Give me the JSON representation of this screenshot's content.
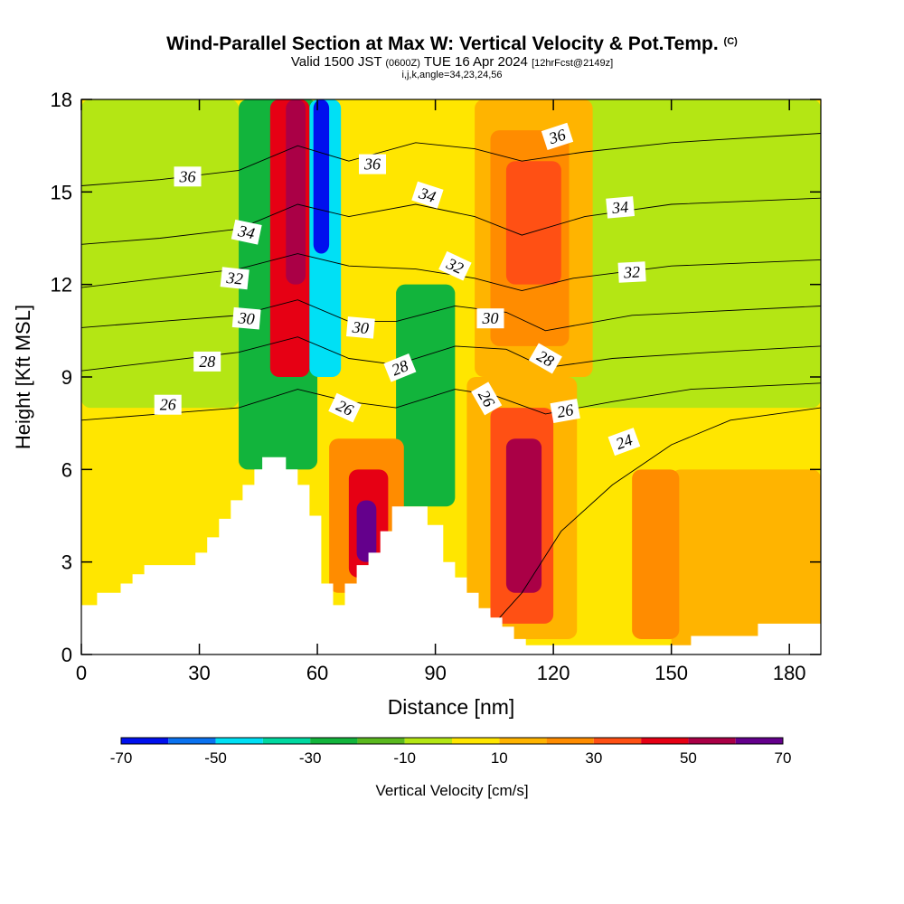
{
  "header": {
    "title": "Wind-Parallel Section at Max W: Vertical Velocity & Pot.Temp.",
    "copyright": "(C)",
    "valid_main": "Valid 1500 JST",
    "valid_utc": "(0600Z)",
    "valid_date": "TUE 16 Apr 2024",
    "forecast": "[12hrFcst@2149z]",
    "indices": "i,j,k,angle=34,23,24,56"
  },
  "chart_data": {
    "type": "heatmap",
    "xlabel": "Distance [nm]",
    "ylabel": "Height [Kft MSL]",
    "xlim": [
      0,
      188
    ],
    "ylim": [
      0,
      18
    ],
    "xticks": [
      0,
      30,
      60,
      90,
      120,
      150,
      180
    ],
    "yticks": [
      0,
      3,
      6,
      9,
      12,
      15,
      18
    ],
    "colorbar": {
      "label": "Vertical Velocity [cm/s]",
      "ticks": [
        -70,
        -50,
        -30,
        -10,
        10,
        30,
        50,
        70
      ],
      "levels": [
        -70,
        -60,
        -50,
        -40,
        -30,
        -20,
        -10,
        0,
        10,
        20,
        30,
        40,
        50,
        60,
        70
      ],
      "colors": [
        "#0010ee",
        "#0a72f0",
        "#00e0f5",
        "#00d8a0",
        "#12b43c",
        "#5ab81e",
        "#b4e614",
        "#ffe600",
        "#ffb400",
        "#ff8c00",
        "#ff5014",
        "#e60014",
        "#aa0046",
        "#64008c"
      ]
    },
    "terrain_kft": [
      [
        0,
        1.6
      ],
      [
        4,
        1.6
      ],
      [
        4,
        2.0
      ],
      [
        10,
        2.0
      ],
      [
        10,
        2.3
      ],
      [
        13,
        2.3
      ],
      [
        13,
        2.6
      ],
      [
        16,
        2.6
      ],
      [
        16,
        2.9
      ],
      [
        29,
        2.9
      ],
      [
        29,
        3.3
      ],
      [
        32,
        3.3
      ],
      [
        32,
        3.8
      ],
      [
        35,
        3.8
      ],
      [
        35,
        4.4
      ],
      [
        38,
        4.4
      ],
      [
        38,
        5.0
      ],
      [
        41,
        5.0
      ],
      [
        41,
        5.5
      ],
      [
        44,
        5.5
      ],
      [
        44,
        6.0
      ],
      [
        46,
        6.0
      ],
      [
        46,
        6.4
      ],
      [
        52,
        6.4
      ],
      [
        52,
        6.0
      ],
      [
        55,
        6.0
      ],
      [
        55,
        5.5
      ],
      [
        58,
        5.5
      ],
      [
        58,
        4.5
      ],
      [
        61,
        4.5
      ],
      [
        61,
        2.3
      ],
      [
        64,
        2.3
      ],
      [
        64,
        1.6
      ],
      [
        67,
        1.6
      ],
      [
        67,
        2.3
      ],
      [
        70,
        2.3
      ],
      [
        70,
        2.9
      ],
      [
        73,
        2.9
      ],
      [
        73,
        3.3
      ],
      [
        76,
        3.3
      ],
      [
        76,
        4.0
      ],
      [
        79,
        4.0
      ],
      [
        79,
        4.8
      ],
      [
        88,
        4.8
      ],
      [
        88,
        4.2
      ],
      [
        92,
        4.2
      ],
      [
        92,
        3.0
      ],
      [
        95,
        3.0
      ],
      [
        95,
        2.5
      ],
      [
        98,
        2.5
      ],
      [
        98,
        2.0
      ],
      [
        101,
        2.0
      ],
      [
        101,
        1.5
      ],
      [
        104,
        1.5
      ],
      [
        104,
        1.2
      ],
      [
        107,
        1.2
      ],
      [
        107,
        0.9
      ],
      [
        110,
        0.9
      ],
      [
        110,
        0.5
      ],
      [
        113,
        0.5
      ],
      [
        113,
        0.3
      ],
      [
        130,
        0.3
      ],
      [
        130,
        0.3
      ],
      [
        155,
        0.3
      ],
      [
        155,
        0.6
      ],
      [
        172,
        0.6
      ],
      [
        172,
        1.0
      ],
      [
        188,
        1.0
      ]
    ],
    "w_cells": [
      {
        "x": [
          0,
          188
        ],
        "y": [
          0,
          18
        ],
        "w": 5
      },
      {
        "x": [
          0,
          40
        ],
        "y": [
          8,
          18
        ],
        "w": -5
      },
      {
        "x": [
          115,
          188
        ],
        "y": [
          8,
          18
        ],
        "w": -5
      },
      {
        "x": [
          150,
          188
        ],
        "y": [
          0,
          6
        ],
        "w": 15
      },
      {
        "x": [
          100,
          130
        ],
        "y": [
          9,
          18
        ],
        "w": 15
      },
      {
        "x": [
          104,
          124
        ],
        "y": [
          10,
          17
        ],
        "w": 25
      },
      {
        "x": [
          108,
          122
        ],
        "y": [
          12,
          16
        ],
        "w": 35
      },
      {
        "x": [
          40,
          60
        ],
        "y": [
          6,
          18
        ],
        "w": -25
      },
      {
        "x": [
          48,
          58
        ],
        "y": [
          9,
          18
        ],
        "w": 45
      },
      {
        "x": [
          52,
          57
        ],
        "y": [
          12,
          18
        ],
        "w": 55
      },
      {
        "x": [
          58,
          66
        ],
        "y": [
          9,
          18
        ],
        "w": -45
      },
      {
        "x": [
          59,
          63
        ],
        "y": [
          13,
          18
        ],
        "w": -65
      },
      {
        "x": [
          80,
          95
        ],
        "y": [
          4.8,
          12
        ],
        "w": -25
      },
      {
        "x": [
          63,
          82
        ],
        "y": [
          2,
          7
        ],
        "w": 25
      },
      {
        "x": [
          68,
          78
        ],
        "y": [
          2.5,
          6
        ],
        "w": 45
      },
      {
        "x": [
          70,
          75
        ],
        "y": [
          3,
          5
        ],
        "w": 65
      },
      {
        "x": [
          98,
          126
        ],
        "y": [
          0.5,
          9
        ],
        "w": 15
      },
      {
        "x": [
          104,
          120
        ],
        "y": [
          1,
          8
        ],
        "w": 35
      },
      {
        "x": [
          108,
          117
        ],
        "y": [
          2,
          7
        ],
        "w": 55
      },
      {
        "x": [
          140,
          152
        ],
        "y": [
          0.5,
          6
        ],
        "w": 25
      }
    ],
    "theta_contours": [
      {
        "label": "24",
        "points": [
          [
            100,
            0.3
          ],
          [
            112,
            2.0
          ],
          [
            122,
            4.0
          ],
          [
            135,
            5.5
          ],
          [
            150,
            6.8
          ],
          [
            165,
            7.6
          ],
          [
            188,
            8.0
          ]
        ]
      },
      {
        "label": "26",
        "points": [
          [
            0,
            7.6
          ],
          [
            20,
            7.8
          ],
          [
            40,
            8.0
          ],
          [
            55,
            8.6
          ],
          [
            68,
            8.2
          ],
          [
            80,
            8.0
          ],
          [
            95,
            8.6
          ],
          [
            105,
            8.4
          ],
          [
            118,
            7.8
          ],
          [
            135,
            8.2
          ],
          [
            155,
            8.6
          ],
          [
            188,
            8.8
          ]
        ]
      },
      {
        "label": "28",
        "points": [
          [
            0,
            9.2
          ],
          [
            20,
            9.5
          ],
          [
            40,
            9.8
          ],
          [
            55,
            10.3
          ],
          [
            68,
            9.6
          ],
          [
            80,
            9.4
          ],
          [
            95,
            10.0
          ],
          [
            108,
            9.9
          ],
          [
            118,
            9.3
          ],
          [
            135,
            9.6
          ],
          [
            160,
            9.8
          ],
          [
            188,
            10.0
          ]
        ]
      },
      {
        "label": "30",
        "points": [
          [
            0,
            10.6
          ],
          [
            20,
            10.8
          ],
          [
            40,
            11.0
          ],
          [
            55,
            11.5
          ],
          [
            68,
            10.8
          ],
          [
            80,
            10.8
          ],
          [
            95,
            11.3
          ],
          [
            108,
            11.1
          ],
          [
            118,
            10.5
          ],
          [
            140,
            11.0
          ],
          [
            188,
            11.3
          ]
        ]
      },
      {
        "label": "32",
        "points": [
          [
            0,
            11.9
          ],
          [
            20,
            12.2
          ],
          [
            40,
            12.5
          ],
          [
            55,
            13.0
          ],
          [
            68,
            12.6
          ],
          [
            85,
            12.5
          ],
          [
            100,
            12.2
          ],
          [
            112,
            11.8
          ],
          [
            125,
            12.2
          ],
          [
            150,
            12.6
          ],
          [
            188,
            12.8
          ]
        ]
      },
      {
        "label": "34",
        "points": [
          [
            0,
            13.3
          ],
          [
            20,
            13.5
          ],
          [
            40,
            13.8
          ],
          [
            55,
            14.6
          ],
          [
            68,
            14.2
          ],
          [
            85,
            14.6
          ],
          [
            100,
            14.2
          ],
          [
            112,
            13.6
          ],
          [
            128,
            14.2
          ],
          [
            150,
            14.6
          ],
          [
            188,
            14.8
          ]
        ]
      },
      {
        "label": "36",
        "points": [
          [
            0,
            15.2
          ],
          [
            20,
            15.4
          ],
          [
            40,
            15.7
          ],
          [
            55,
            16.5
          ],
          [
            68,
            16.0
          ],
          [
            85,
            16.6
          ],
          [
            100,
            16.4
          ],
          [
            112,
            16.0
          ],
          [
            128,
            16.3
          ],
          [
            150,
            16.6
          ],
          [
            188,
            16.9
          ]
        ]
      }
    ],
    "theta_labels": [
      {
        "text": "36",
        "x": 27,
        "y": 15.5,
        "angle": 0
      },
      {
        "text": "36",
        "x": 74,
        "y": 15.9,
        "angle": 0
      },
      {
        "text": "36",
        "x": 121,
        "y": 16.8,
        "angle": -18
      },
      {
        "text": "34",
        "x": 42,
        "y": 13.7,
        "angle": 12
      },
      {
        "text": "34",
        "x": 88,
        "y": 14.9,
        "angle": 18
      },
      {
        "text": "34",
        "x": 137,
        "y": 14.5,
        "angle": -5
      },
      {
        "text": "32",
        "x": 39,
        "y": 12.2,
        "angle": 6
      },
      {
        "text": "32",
        "x": 95,
        "y": 12.6,
        "angle": 25
      },
      {
        "text": "32",
        "x": 140,
        "y": 12.4,
        "angle": -3
      },
      {
        "text": "30",
        "x": 42,
        "y": 10.9,
        "angle": 5
      },
      {
        "text": "30",
        "x": 71,
        "y": 10.6,
        "angle": 5
      },
      {
        "text": "30",
        "x": 104,
        "y": 10.9,
        "angle": 0
      },
      {
        "text": "28",
        "x": 32,
        "y": 9.5,
        "angle": 0
      },
      {
        "text": "28",
        "x": 81,
        "y": 9.3,
        "angle": -22
      },
      {
        "text": "28",
        "x": 118,
        "y": 9.6,
        "angle": 30
      },
      {
        "text": "26",
        "x": 22,
        "y": 8.1,
        "angle": 0
      },
      {
        "text": "26",
        "x": 67,
        "y": 8.0,
        "angle": 25
      },
      {
        "text": "26",
        "x": 103,
        "y": 8.3,
        "angle": 60
      },
      {
        "text": "26",
        "x": 123,
        "y": 7.9,
        "angle": -10
      },
      {
        "text": "24",
        "x": 138,
        "y": 6.9,
        "angle": -20
      }
    ]
  }
}
